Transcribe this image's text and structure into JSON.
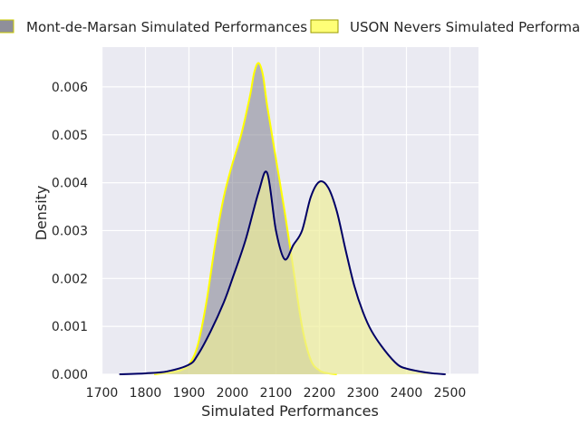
{
  "chart_data": {
    "type": "area",
    "title": "",
    "xlabel": "Simulated Performances",
    "ylabel": "Density",
    "xlim": [
      1700,
      2500
    ],
    "ylim": [
      0,
      0.0065
    ],
    "x_ticks": [
      1700,
      1800,
      1900,
      2000,
      2100,
      2200,
      2300,
      2400,
      2500
    ],
    "y_ticks": [
      0.0,
      0.001,
      0.002,
      0.003,
      0.004,
      0.005,
      0.006
    ],
    "y_tick_labels": [
      "0.000",
      "0.001",
      "0.002",
      "0.003",
      "0.004",
      "0.005",
      "0.006"
    ],
    "grid": true,
    "legend_position": "top (above plot)",
    "series": [
      {
        "name": "Mont-de-Marsan Simulated Performances",
        "fill_color": "#7f7f8e",
        "fill_opacity": 0.55,
        "line_color": "#ffff00",
        "legend_swatch": "#8f8f9a",
        "x": [
          1820,
          1850,
          1880,
          1900,
          1920,
          1940,
          1960,
          1980,
          2000,
          2020,
          2040,
          2050,
          2060,
          2070,
          2080,
          2100,
          2120,
          2140,
          2160,
          2180,
          2200,
          2220,
          2240
        ],
        "y": [
          0.0,
          3e-05,
          8e-05,
          0.0002,
          0.0006,
          0.0015,
          0.0027,
          0.0037,
          0.0044,
          0.005,
          0.0058,
          0.0063,
          0.0065,
          0.00625,
          0.0056,
          0.0045,
          0.0034,
          0.0022,
          0.001,
          0.0003,
          8e-05,
          2e-05,
          0.0
        ]
      },
      {
        "name": "USON Nevers Simulated Performances",
        "fill_color": "#eeee99",
        "fill_opacity": 0.7,
        "line_color": "#000066",
        "legend_swatch": "#ffff77",
        "x": [
          1740,
          1800,
          1850,
          1900,
          1920,
          1950,
          1980,
          2000,
          2030,
          2060,
          2080,
          2100,
          2120,
          2140,
          2160,
          2180,
          2200,
          2220,
          2240,
          2260,
          2280,
          2300,
          2320,
          2350,
          2380,
          2400,
          2430,
          2460,
          2490
        ],
        "y": [
          0.0,
          2e-05,
          6e-05,
          0.0002,
          0.0004,
          0.0009,
          0.0015,
          0.002,
          0.0028,
          0.0038,
          0.0042,
          0.003,
          0.0024,
          0.0027,
          0.003,
          0.0037,
          0.00402,
          0.0039,
          0.0034,
          0.0026,
          0.00185,
          0.0013,
          0.0009,
          0.0005,
          0.0002,
          0.00012,
          6e-05,
          2e-05,
          0.0
        ]
      }
    ]
  }
}
